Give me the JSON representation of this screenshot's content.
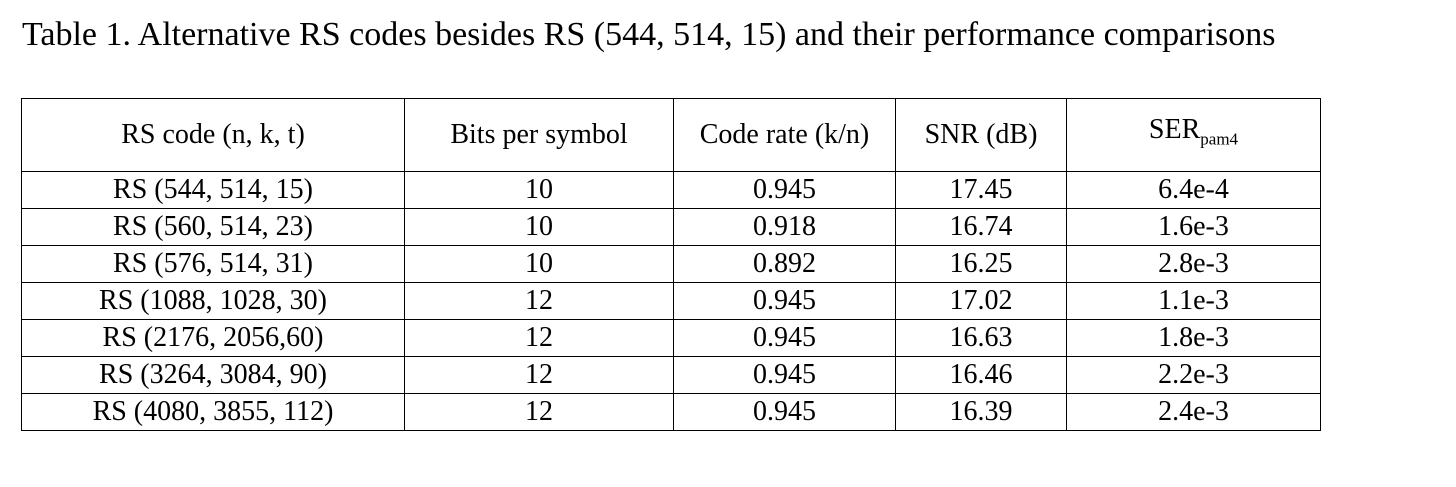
{
  "caption": "Table 1. Alternative RS codes besides RS (544, 514, 15) and their performance comparisons",
  "table": {
    "header": [
      "RS code (n, k, t)",
      "Bits per symbol",
      "Code rate (k/n)",
      "SNR (dB)",
      {
        "text": "SER",
        "sub": "pam4"
      }
    ],
    "rows": [
      [
        "RS (544, 514, 15)",
        "10",
        "0.945",
        "17.45",
        "6.4e-4"
      ],
      [
        "RS (560, 514, 23)",
        "10",
        "0.918",
        "16.74",
        "1.6e-3"
      ],
      [
        "RS (576, 514, 31)",
        "10",
        "0.892",
        "16.25",
        "2.8e-3"
      ],
      [
        "RS (1088, 1028, 30)",
        "12",
        "0.945",
        "17.02",
        "1.1e-3"
      ],
      [
        "RS (2176, 2056,60)",
        "12",
        "0.945",
        "16.63",
        "1.8e-3"
      ],
      [
        "RS (3264, 3084, 90)",
        "12",
        "0.945",
        "16.46",
        "2.2e-3"
      ],
      [
        "RS (4080, 3855, 112)",
        "12",
        "0.945",
        "16.39",
        "2.4e-3"
      ]
    ]
  }
}
